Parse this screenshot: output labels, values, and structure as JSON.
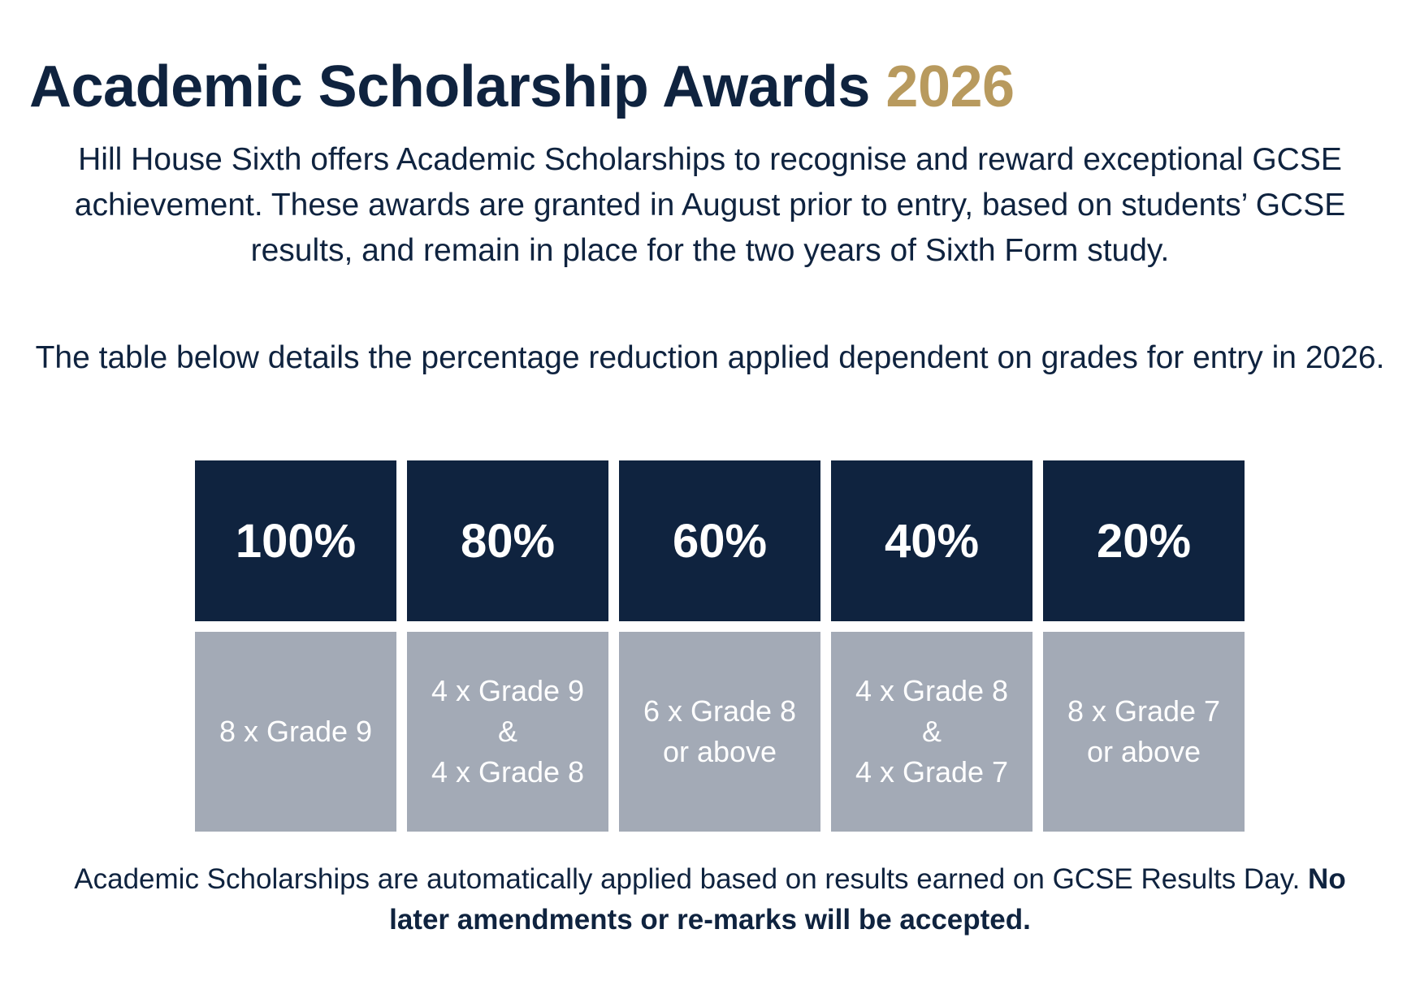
{
  "title": {
    "main": "Academic Scholarship Awards",
    "year": "2026"
  },
  "intro": {
    "paragraph1": "Hill House Sixth offers Academic Scholarships to recognise and reward exceptional GCSE achievement. These awards are granted in August prior to entry, based on students’ GCSE results, and remain in place for the two years of Sixth Form study.",
    "paragraph2": "The table below details the percentage reduction applied dependent on grades for entry in 2026."
  },
  "awards": [
    {
      "percent": "100%",
      "lines": [
        "8 x Grade 9"
      ]
    },
    {
      "percent": "80%",
      "lines": [
        "4 x Grade 9",
        "&",
        "4 x Grade 8"
      ]
    },
    {
      "percent": "60%",
      "lines": [
        "6 x Grade 8",
        "or above"
      ]
    },
    {
      "percent": "40%",
      "lines": [
        "4 x Grade 8",
        "&",
        "4 x Grade 7"
      ]
    },
    {
      "percent": "20%",
      "lines": [
        "8 x Grade 7",
        "or above"
      ]
    }
  ],
  "footer": {
    "text": "Academic Scholarships are automatically applied based on results earned on GCSE Results Day.",
    "bold": "No later amendments or re-marks will be accepted."
  },
  "colors": {
    "navy": "#0f233f",
    "gold": "#b89a5e",
    "grey": "#a3aab6"
  }
}
